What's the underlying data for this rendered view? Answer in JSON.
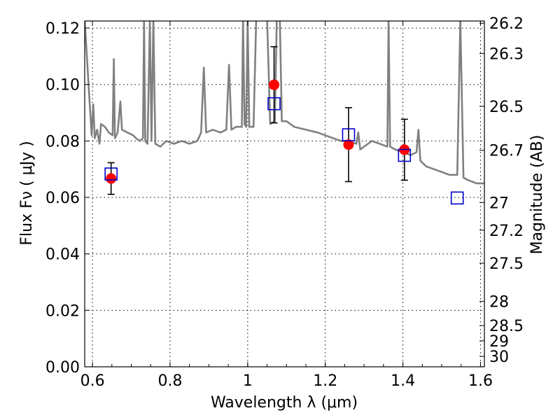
{
  "chart_data": {
    "type": "scatter",
    "xlabel": "Wavelength  λ (μm)",
    "ylabel": "Flux  Fν  ( μJy )",
    "y2label": "Magnitude (AB)",
    "xlim": [
      0.58,
      1.61
    ],
    "ylim": [
      0.0,
      0.1225
    ],
    "grid": true,
    "x_ticks": [
      0.6,
      0.8,
      1.0,
      1.2,
      1.4,
      1.6
    ],
    "x_tick_labels": [
      "0.6",
      "0.8",
      "1",
      "1.2",
      "1.4",
      "1.6"
    ],
    "y_ticks": [
      0.0,
      0.02,
      0.04,
      0.06,
      0.08,
      0.1,
      0.12
    ],
    "y_tick_labels": [
      "0.00",
      "0.02",
      "0.04",
      "0.06",
      "0.08",
      "0.10",
      "0.12"
    ],
    "mag_ticks": [
      {
        "label": "26.2",
        "flux": 0.1217
      },
      {
        "label": "26.3",
        "flux": 0.111
      },
      {
        "label": "26.5",
        "flux": 0.0923
      },
      {
        "label": "26.7",
        "flux": 0.0767
      },
      {
        "label": "27",
        "flux": 0.0582
      },
      {
        "label": "27.2",
        "flux": 0.0484
      },
      {
        "label": "27.5",
        "flux": 0.0367
      },
      {
        "label": "28",
        "flux": 0.0232
      },
      {
        "label": "28.5",
        "flux": 0.0146
      },
      {
        "label": "29",
        "flux": 0.0092
      },
      {
        "label": "30",
        "flux": 0.0037
      }
    ],
    "series": [
      {
        "kind": "line",
        "color": "#808080",
        "points": [
          [
            0.58,
            0.123
          ],
          [
            0.592,
            0.095
          ],
          [
            0.598,
            0.082
          ],
          [
            0.602,
            0.093
          ],
          [
            0.606,
            0.081
          ],
          [
            0.612,
            0.084
          ],
          [
            0.618,
            0.079
          ],
          [
            0.622,
            0.086
          ],
          [
            0.632,
            0.085
          ],
          [
            0.642,
            0.083
          ],
          [
            0.652,
            0.082
          ],
          [
            0.655,
            0.109
          ],
          [
            0.658,
            0.081
          ],
          [
            0.665,
            0.083
          ],
          [
            0.672,
            0.094
          ],
          [
            0.676,
            0.084
          ],
          [
            0.69,
            0.083
          ],
          [
            0.705,
            0.082
          ],
          [
            0.712,
            0.081
          ],
          [
            0.722,
            0.08
          ],
          [
            0.73,
            0.081
          ],
          [
            0.733,
            0.123
          ],
          [
            0.736,
            0.08
          ],
          [
            0.742,
            0.079
          ],
          [
            0.748,
            0.123
          ],
          [
            0.752,
            0.08
          ],
          [
            0.757,
            0.123
          ],
          [
            0.762,
            0.079
          ],
          [
            0.775,
            0.078
          ],
          [
            0.79,
            0.08
          ],
          [
            0.81,
            0.079
          ],
          [
            0.83,
            0.08
          ],
          [
            0.85,
            0.079
          ],
          [
            0.87,
            0.08
          ],
          [
            0.88,
            0.083
          ],
          [
            0.887,
            0.106
          ],
          [
            0.893,
            0.083
          ],
          [
            0.91,
            0.084
          ],
          [
            0.93,
            0.083
          ],
          [
            0.945,
            0.084
          ],
          [
            0.952,
            0.107
          ],
          [
            0.958,
            0.084
          ],
          [
            0.97,
            0.085
          ],
          [
            0.985,
            0.085
          ],
          [
            0.988,
            0.123
          ],
          [
            0.992,
            0.086
          ],
          [
            0.996,
            0.085
          ],
          [
            1.0,
            0.123
          ],
          [
            1.004,
            0.085
          ],
          [
            1.015,
            0.085
          ],
          [
            1.022,
            0.123
          ],
          [
            1.05,
            0.123
          ],
          [
            1.058,
            0.086
          ],
          [
            1.07,
            0.087
          ],
          [
            1.075,
            0.123
          ],
          [
            1.083,
            0.123
          ],
          [
            1.088,
            0.087
          ],
          [
            1.1,
            0.087
          ],
          [
            1.12,
            0.085
          ],
          [
            1.15,
            0.084
          ],
          [
            1.18,
            0.083
          ],
          [
            1.2,
            0.082
          ],
          [
            1.22,
            0.081
          ],
          [
            1.24,
            0.08
          ],
          [
            1.26,
            0.08
          ],
          [
            1.28,
            0.079
          ],
          [
            1.285,
            0.083
          ],
          [
            1.29,
            0.077
          ],
          [
            1.3,
            0.078
          ],
          [
            1.32,
            0.08
          ],
          [
            1.34,
            0.079
          ],
          [
            1.36,
            0.078
          ],
          [
            1.363,
            0.123
          ],
          [
            1.367,
            0.078
          ],
          [
            1.38,
            0.077
          ],
          [
            1.4,
            0.076
          ],
          [
            1.42,
            0.075
          ],
          [
            1.435,
            0.076
          ],
          [
            1.44,
            0.084
          ],
          [
            1.445,
            0.073
          ],
          [
            1.46,
            0.071
          ],
          [
            1.48,
            0.07
          ],
          [
            1.5,
            0.069
          ],
          [
            1.52,
            0.068
          ],
          [
            1.54,
            0.068
          ],
          [
            1.548,
            0.123
          ],
          [
            1.556,
            0.067
          ],
          [
            1.57,
            0.066
          ],
          [
            1.59,
            0.065
          ],
          [
            1.61,
            0.065
          ]
        ]
      },
      {
        "kind": "observed",
        "color": "#ff0000",
        "points": [
          {
            "x": 0.648,
            "y": 0.0667,
            "err": 0.0056
          },
          {
            "x": 1.068,
            "y": 0.0999,
            "err": 0.0135
          },
          {
            "x": 1.26,
            "y": 0.0787,
            "err": 0.0131
          },
          {
            "x": 1.404,
            "y": 0.0769,
            "err": 0.0108
          }
        ]
      },
      {
        "kind": "model",
        "color": "#0000cc",
        "points": [
          {
            "x": 0.648,
            "y": 0.0683
          },
          {
            "x": 1.068,
            "y": 0.0932
          },
          {
            "x": 1.26,
            "y": 0.0822
          },
          {
            "x": 1.404,
            "y": 0.0749
          },
          {
            "x": 1.54,
            "y": 0.0598
          }
        ]
      }
    ]
  }
}
